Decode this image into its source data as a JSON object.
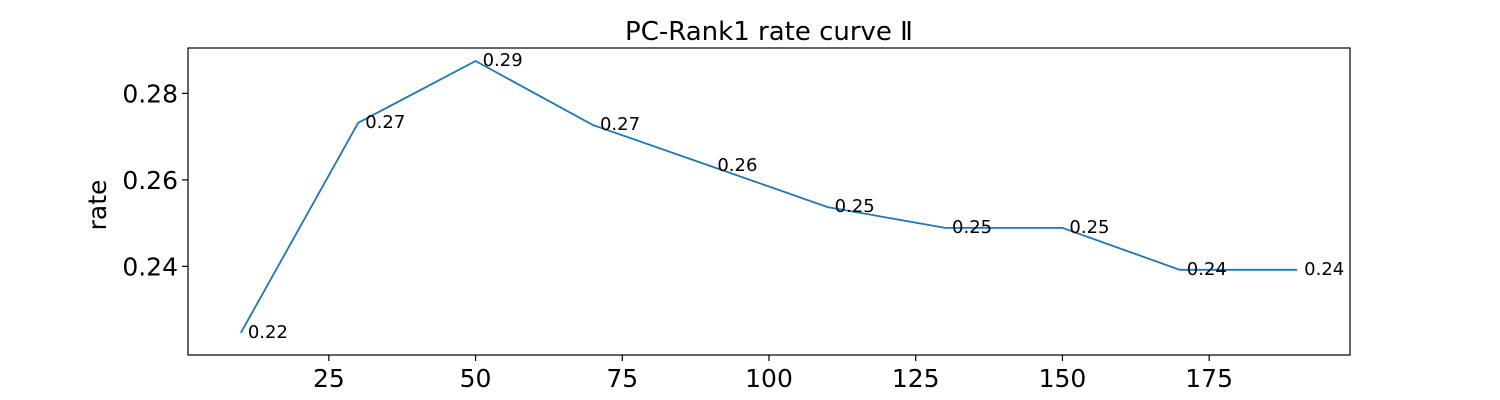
{
  "chart_data": {
    "type": "line",
    "title": "PC-Rank1 rate curve Ⅱ",
    "xlabel": "",
    "ylabel": "rate",
    "xlim": [
      1,
      199
    ],
    "ylim": [
      0.2195,
      0.2905
    ],
    "xticks": [
      25,
      50,
      75,
      100,
      125,
      150,
      175
    ],
    "yticks": [
      0.24,
      0.26,
      0.28
    ],
    "grid": false,
    "line_color": "#1f77b4",
    "series": [
      {
        "x": [
          10,
          30,
          50,
          70,
          90,
          110,
          130,
          150,
          170,
          190
        ],
        "values": [
          0.2246,
          0.2732,
          0.2875,
          0.2727,
          0.2632,
          0.2537,
          0.2489,
          0.2489,
          0.2392,
          0.2392
        ],
        "labels": [
          "0.22",
          "0.27",
          "0.29",
          "0.27",
          "0.26",
          "0.25",
          "0.25",
          "0.25",
          "0.24",
          "0.24"
        ]
      }
    ]
  }
}
